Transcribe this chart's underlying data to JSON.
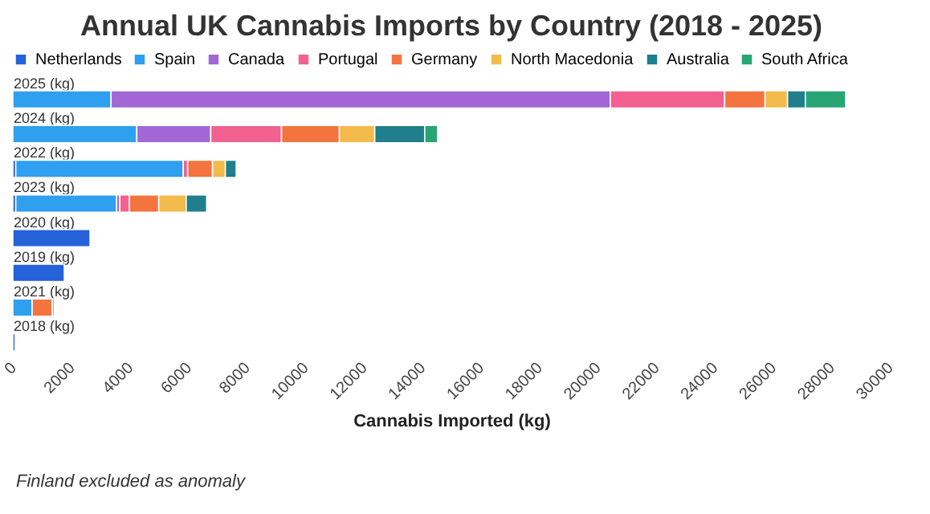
{
  "chart_data": {
    "type": "bar",
    "orientation": "horizontal",
    "stacked": true,
    "title": "Annual UK Cannabis Imports by Country (2018 - 2025)",
    "xlabel": "Cannabis Imported (kg)",
    "categories": [
      "2025 (kg)",
      "2024 (kg)",
      "2022 (kg)",
      "2023 (kg)",
      "2020 (kg)",
      "2019 (kg)",
      "2021 (kg)",
      "2018 (kg)"
    ],
    "series": [
      {
        "name": "Netherlands",
        "color": "#2561d9",
        "values": [
          null,
          null,
          100,
          100,
          2640,
          1760,
          null,
          80
        ]
      },
      {
        "name": "Spain",
        "color": "#2fa0f0",
        "values": [
          3360,
          4240,
          5730,
          3450,
          null,
          null,
          660,
          null
        ]
      },
      {
        "name": "Canada",
        "color": "#a366d6",
        "values": [
          17080,
          2530,
          null,
          110,
          null,
          null,
          null,
          null
        ]
      },
      {
        "name": "Portugal",
        "color": "#f2618f",
        "values": [
          3910,
          2420,
          150,
          330,
          null,
          null,
          null,
          null
        ]
      },
      {
        "name": "Germany",
        "color": "#f47440",
        "values": [
          1380,
          1980,
          850,
          1000,
          null,
          null,
          690,
          null
        ]
      },
      {
        "name": "North Macedonia",
        "color": "#f2bb4b",
        "values": [
          770,
          1210,
          440,
          940,
          null,
          null,
          null,
          null
        ]
      },
      {
        "name": "Australia",
        "color": "#1f7f8c",
        "values": [
          610,
          1710,
          370,
          700,
          null,
          null,
          60,
          null
        ]
      },
      {
        "name": "South Africa",
        "color": "#27a575",
        "values": [
          1380,
          440,
          null,
          null,
          null,
          null,
          null,
          null
        ]
      }
    ],
    "xlim": [
      0,
      30000
    ],
    "xticks": [
      0,
      2000,
      4000,
      6000,
      8000,
      10000,
      12000,
      14000,
      16000,
      18000,
      20000,
      22000,
      24000,
      26000,
      28000,
      30000
    ],
    "legend": "top left",
    "annotations": [
      "Finland excluded as anomaly"
    ]
  }
}
